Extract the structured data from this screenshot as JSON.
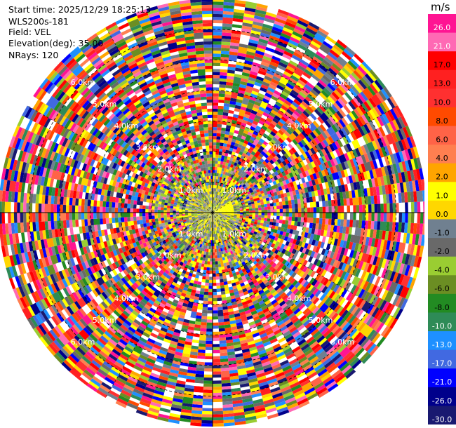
{
  "info": {
    "start_time": "Start time: 2025/12/29 18:25:13",
    "station": "WLS200s-181",
    "field": "Field: VEL",
    "elevation": "Elevation(deg): 35.00",
    "nrays": "NRays: 120"
  },
  "chart_data": {
    "type": "heatmap",
    "projection": "polar-ppi",
    "n_rays": 120,
    "range_rings_km": [
      1.0,
      2.0,
      3.0,
      4.0,
      5.0,
      6.0
    ],
    "ring_labels": [
      "1.0km",
      "2.0km",
      "3.0km",
      "4.0km",
      "5.0km",
      "6.0km"
    ],
    "max_range_km": 7.0,
    "colorbar": {
      "unit": "m/s",
      "tick_labels": [
        "26.0",
        "21.0",
        "17.0",
        "13.0",
        "10.0",
        "8.0",
        "6.0",
        "4.0",
        "2.0",
        "1.0",
        "0.0",
        "-1.0",
        "-2.0",
        "-4.0",
        "-6.0",
        "-8.0",
        "-10.0",
        "-13.0",
        "-17.0",
        "-21.0",
        "-26.0",
        "-30.0"
      ],
      "colors": [
        "#ff1493",
        "#ff69b4",
        "#ff0000",
        "#ff2020",
        "#ff3030",
        "#ff4a00",
        "#ff6347",
        "#ff7f50",
        "#ffa500",
        "#ffff00",
        "#ffd700",
        "#708090",
        "#696969",
        "#9acd32",
        "#6b8e23",
        "#228b22",
        "#2e8b57",
        "#1e90ff",
        "#4169e1",
        "#0000ff",
        "#00008b",
        "#191970"
      ]
    }
  }
}
